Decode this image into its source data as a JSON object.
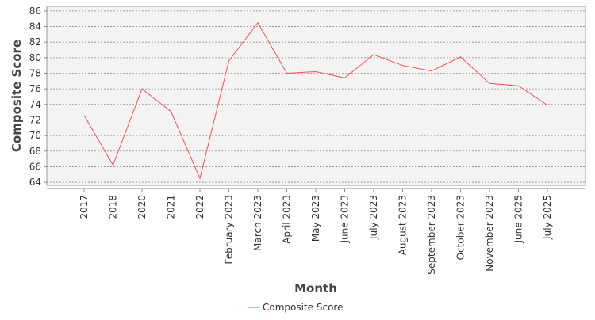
{
  "chart_data": {
    "type": "line",
    "xlabel": "Month",
    "ylabel": "Composite Score",
    "categories": [
      "2017",
      "2018",
      "2020",
      "2021",
      "2022",
      "February 2023",
      "March 2023",
      "April 2023",
      "May 2023",
      "June 2023",
      "July 2023",
      "August 2023",
      "September 2023",
      "October 2023",
      "November 2023",
      "June 2025",
      "July 2025"
    ],
    "series": [
      {
        "name": "Composite Score",
        "color": "#ff4d4d",
        "values": [
          72.6,
          66.2,
          76.0,
          73.1,
          64.5,
          79.6,
          84.5,
          78.0,
          78.2,
          77.4,
          80.4,
          79.0,
          78.3,
          80.1,
          76.7,
          76.4,
          73.9
        ]
      }
    ],
    "ylim": [
      63.6,
      86.6
    ],
    "yticks": [
      64,
      66,
      68,
      70,
      72,
      74,
      76,
      78,
      80,
      82,
      84,
      86
    ],
    "grid": true,
    "legend_position": "bottom"
  }
}
